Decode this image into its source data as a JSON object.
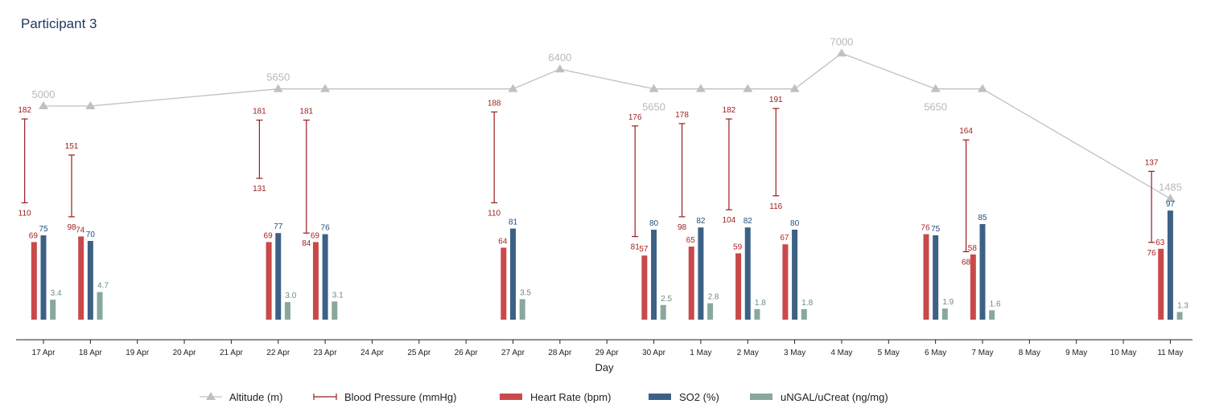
{
  "title": "Participant 3",
  "chart_data": {
    "type": "bar",
    "xlabel": "Day",
    "ticks": [
      "17 Apr",
      "18 Apr",
      "19 Apr",
      "20 Apr",
      "21 Apr",
      "22 Apr",
      "23 Apr",
      "24 Apr",
      "25 Apr",
      "26 Apr",
      "27 Apr",
      "28 Apr",
      "29 Apr",
      "30 Apr",
      "1 May",
      "2 May",
      "3 May",
      "4 May",
      "5 May",
      "6 May",
      "7 May",
      "8 May",
      "9 May",
      "10 May",
      "11 May"
    ],
    "altitude": {
      "name": "Altitude (m)",
      "color": "#c0c0c0",
      "points": [
        {
          "day": "17 Apr",
          "value": 5000,
          "label": "5000",
          "label_pos": "above"
        },
        {
          "day": "18 Apr",
          "value": 5000,
          "label": "",
          "label_pos": "above"
        },
        {
          "day": "22 Apr",
          "value": 5650,
          "label": "5650",
          "label_pos": "above"
        },
        {
          "day": "23 Apr",
          "value": 5650,
          "label": "",
          "label_pos": "above"
        },
        {
          "day": "27 Apr",
          "value": 5650,
          "label": "",
          "label_pos": "above"
        },
        {
          "day": "28 Apr",
          "value": 6400,
          "label": "6400",
          "label_pos": "above"
        },
        {
          "day": "30 Apr",
          "value": 5650,
          "label": "5650",
          "label_pos": "below"
        },
        {
          "day": "1 May",
          "value": 5650,
          "label": "",
          "label_pos": "above"
        },
        {
          "day": "2 May",
          "value": 5650,
          "label": "",
          "label_pos": "above"
        },
        {
          "day": "3 May",
          "value": 5650,
          "label": "",
          "label_pos": "above"
        },
        {
          "day": "4 May",
          "value": 7000,
          "label": "7000",
          "label_pos": "above"
        },
        {
          "day": "6 May",
          "value": 5650,
          "label": "5650",
          "label_pos": "below"
        },
        {
          "day": "7 May",
          "value": 5650,
          "label": "",
          "label_pos": "above"
        },
        {
          "day": "11 May",
          "value": 1485,
          "label": "1485",
          "label_pos": "above"
        }
      ]
    },
    "blood_pressure": {
      "name": "Blood Pressure (mmHg)",
      "color": "#9b1c1c",
      "points": [
        {
          "day": "17 Apr",
          "offset": -0.4,
          "systolic": 182,
          "diastolic": 110
        },
        {
          "day": "18 Apr",
          "offset": -0.4,
          "systolic": 151,
          "diastolic": 98
        },
        {
          "day": "22 Apr",
          "offset": -0.4,
          "systolic": 181,
          "diastolic": 131
        },
        {
          "day": "23 Apr",
          "offset": -0.4,
          "systolic": 181,
          "diastolic": 84
        },
        {
          "day": "27 Apr",
          "offset": -0.4,
          "systolic": 188,
          "diastolic": 110
        },
        {
          "day": "30 Apr",
          "offset": -0.4,
          "systolic": 176,
          "diastolic": 81
        },
        {
          "day": "1 May",
          "offset": -0.4,
          "systolic": 178,
          "diastolic": 98
        },
        {
          "day": "2 May",
          "offset": -0.4,
          "systolic": 182,
          "diastolic": 104
        },
        {
          "day": "3 May",
          "offset": -0.4,
          "systolic": 191,
          "diastolic": 116
        },
        {
          "day": "7 May",
          "offset": -0.35,
          "systolic": 164,
          "diastolic": 68
        },
        {
          "day": "11 May",
          "offset": -0.4,
          "systolic": 137,
          "diastolic": 76
        }
      ]
    },
    "bars": [
      {
        "name": "Heart Rate (bpm)",
        "color": "#c9494b",
        "label_color": "#b22222",
        "offset": -0.2,
        "points": [
          {
            "day": "17 Apr",
            "value": 69
          },
          {
            "day": "18 Apr",
            "value": 74
          },
          {
            "day": "22 Apr",
            "value": 69
          },
          {
            "day": "23 Apr",
            "value": 69
          },
          {
            "day": "27 Apr",
            "value": 64
          },
          {
            "day": "30 Apr",
            "value": 57
          },
          {
            "day": "1 May",
            "value": 65
          },
          {
            "day": "2 May",
            "value": 59
          },
          {
            "day": "3 May",
            "value": 67
          },
          {
            "day": "6 May",
            "value": 76
          },
          {
            "day": "7 May",
            "value": 58
          },
          {
            "day": "11 May",
            "value": 63
          }
        ]
      },
      {
        "name": "SO2 (%)",
        "color": "#3d6185",
        "label_color": "#1f4e79",
        "offset": 0,
        "points": [
          {
            "day": "17 Apr",
            "value": 75
          },
          {
            "day": "18 Apr",
            "value": 70
          },
          {
            "day": "22 Apr",
            "value": 77
          },
          {
            "day": "23 Apr",
            "value": 76
          },
          {
            "day": "27 Apr",
            "value": 81
          },
          {
            "day": "30 Apr",
            "value": 80
          },
          {
            "day": "1 May",
            "value": 82
          },
          {
            "day": "2 May",
            "value": 82
          },
          {
            "day": "3 May",
            "value": 80
          },
          {
            "day": "6 May",
            "value": 75
          },
          {
            "day": "7 May",
            "value": 85
          },
          {
            "day": "11 May",
            "value": 97
          }
        ]
      },
      {
        "name": "uNGAL/uCreat (ng/mg)",
        "color": "#88a89c",
        "label_color": "#6e8b80",
        "offset": 0.2,
        "points": [
          {
            "day": "17 Apr",
            "value": 3.4,
            "label": "3.4"
          },
          {
            "day": "18 Apr",
            "value": 4.7,
            "label": "4.7"
          },
          {
            "day": "22 Apr",
            "value": 3.0,
            "label": "3.0"
          },
          {
            "day": "23 Apr",
            "value": 3.1,
            "label": "3.1"
          },
          {
            "day": "27 Apr",
            "value": 3.5,
            "label": "3.5"
          },
          {
            "day": "30 Apr",
            "value": 2.5,
            "label": "2.5"
          },
          {
            "day": "1 May",
            "value": 2.8,
            "label": "2.8"
          },
          {
            "day": "2 May",
            "value": 1.8,
            "label": "1.8"
          },
          {
            "day": "3 May",
            "value": 1.8,
            "label": "1.8"
          },
          {
            "day": "6 May",
            "value": 1.9,
            "label": "1.9"
          },
          {
            "day": "7 May",
            "value": 1.6,
            "label": "1.6"
          },
          {
            "day": "11 May",
            "value": 1.3,
            "label": "1.3"
          }
        ]
      }
    ],
    "legend": [
      {
        "name": "Altitude (m)",
        "kind": "line-triangle",
        "color": "#c0c0c0"
      },
      {
        "name": "Blood Pressure (mmHg)",
        "kind": "errorbar",
        "color": "#9b1c1c"
      },
      {
        "name": "Heart Rate (bpm)",
        "kind": "bar",
        "color": "#c9494b"
      },
      {
        "name": "SO2 (%)",
        "kind": "bar",
        "color": "#3d6185"
      },
      {
        "name": "uNGAL/uCreat (ng/mg)",
        "kind": "bar",
        "color": "#88a89c"
      }
    ],
    "legend_position": "bottom"
  }
}
